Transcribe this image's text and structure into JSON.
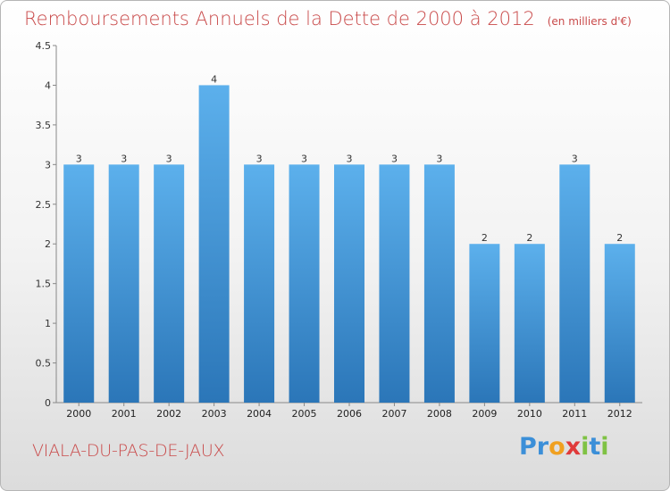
{
  "chart_data": {
    "type": "bar",
    "title": "Remboursements Annuels de la Dette de 2000 à 2012",
    "subtitle": "(en milliers d'€)",
    "categories": [
      "2000",
      "2001",
      "2002",
      "2003",
      "2004",
      "2005",
      "2006",
      "2007",
      "2008",
      "2009",
      "2010",
      "2011",
      "2012"
    ],
    "values": [
      3,
      3,
      3,
      4,
      3,
      3,
      3,
      3,
      3,
      2,
      2,
      3,
      2
    ],
    "ylim": [
      0,
      4.5
    ],
    "yticks": [
      0,
      0.5,
      1,
      1.5,
      2,
      2.5,
      3,
      3.5,
      4,
      4.5
    ],
    "ytick_labels": [
      "0",
      "0.5",
      "1",
      "1.5",
      "2",
      "2.5",
      "3",
      "3.5",
      "4",
      "4.5"
    ],
    "xlabel": "",
    "ylabel": "",
    "grid": false,
    "bar_color": "#4a9fe0"
  },
  "commune": "VIALA-DU-PAS-DE-JAUX",
  "logo": {
    "letters": [
      "P",
      "r",
      "o",
      "x",
      "i",
      "t",
      "i"
    ],
    "colors": [
      "#3b8fd8",
      "#3b8fd8",
      "#f0a020",
      "#e03a3a",
      "#7fc244",
      "#3b8fd8",
      "#7fc244"
    ]
  },
  "colors": {
    "title": "#c94a4a",
    "bar_top": "#5cb0ec",
    "bar_bottom": "#2b76b8"
  }
}
